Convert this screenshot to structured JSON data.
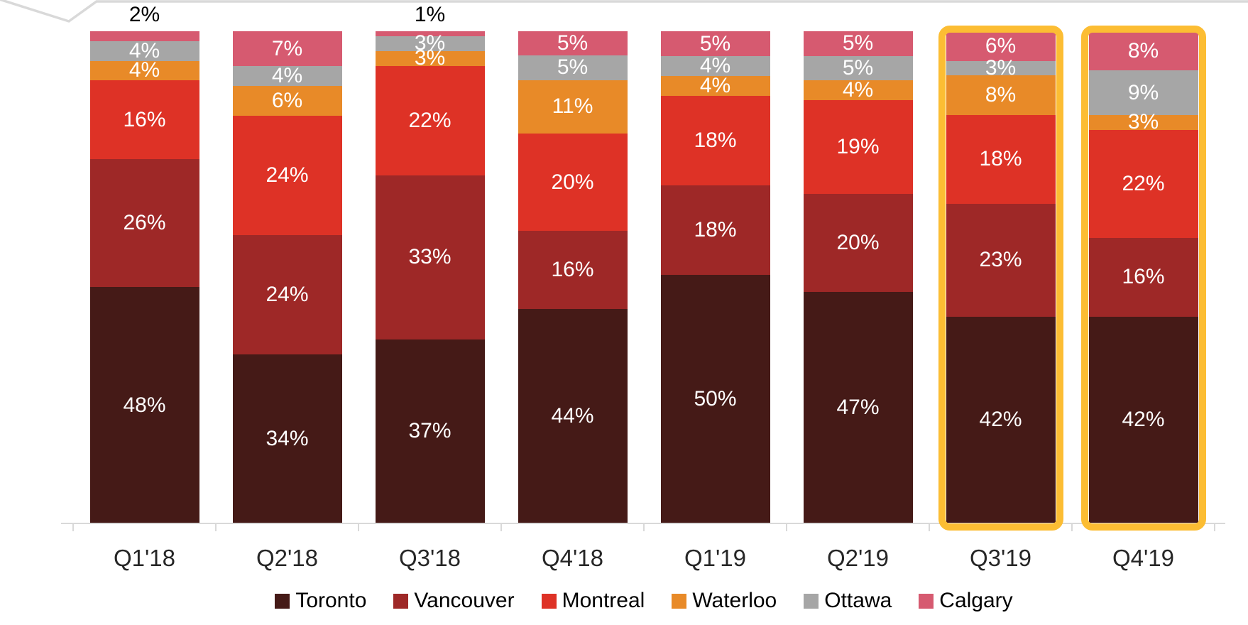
{
  "chart_data": {
    "type": "bar",
    "stacked": true,
    "percent_stacked": true,
    "value_suffix": "%",
    "ylim": [
      0,
      100
    ],
    "grid": false,
    "legend_position": "bottom",
    "categories": [
      "Q1'18",
      "Q2'18",
      "Q3'18",
      "Q4'18",
      "Q1'19",
      "Q2'19",
      "Q3'19",
      "Q4'19"
    ],
    "series": [
      {
        "name": "Toronto",
        "color": "#451A17",
        "values": [
          48,
          34,
          37,
          44,
          50,
          47,
          42,
          42
        ]
      },
      {
        "name": "Vancouver",
        "color": "#9E2827",
        "values": [
          26,
          24,
          33,
          16,
          18,
          20,
          23,
          16
        ]
      },
      {
        "name": "Montreal",
        "color": "#DE3226",
        "values": [
          16,
          24,
          22,
          20,
          18,
          19,
          18,
          22
        ]
      },
      {
        "name": "Waterloo",
        "color": "#E88A28",
        "values": [
          4,
          6,
          3,
          11,
          4,
          4,
          8,
          3
        ]
      },
      {
        "name": "Ottawa",
        "color": "#A6A6A6",
        "values": [
          4,
          4,
          3,
          5,
          4,
          5,
          3,
          9
        ]
      },
      {
        "name": "Calgary",
        "color": "#D65A70",
        "values": [
          2,
          7,
          1,
          5,
          5,
          5,
          6,
          8
        ]
      }
    ],
    "outside_labels": [
      {
        "category": "Q1'18",
        "series": "Calgary",
        "text": "2%"
      },
      {
        "category": "Q3'18",
        "series": "Calgary",
        "text": "1%"
      }
    ],
    "highlighted_categories": [
      "Q3'19",
      "Q4'19"
    ],
    "highlight_color": "#FCBD33",
    "axis_color": "#D9D9D9",
    "inside_label_color": "#FFFFFF",
    "outside_label_color": "#000000",
    "axis_label_color": "#262626"
  }
}
